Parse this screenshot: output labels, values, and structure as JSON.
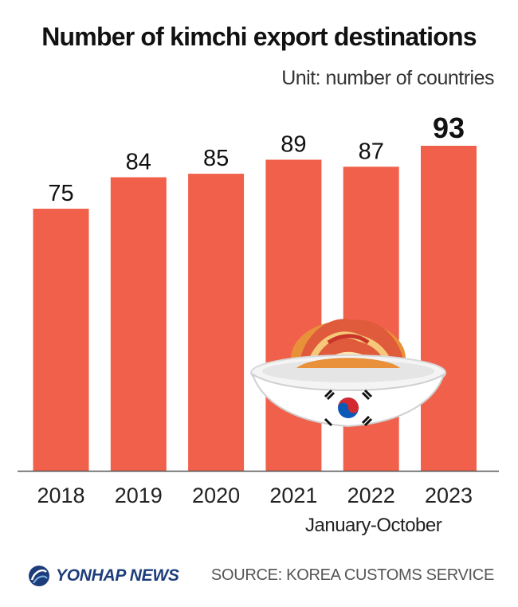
{
  "title": "Number of kimchi export destinations",
  "unit": "Unit: number of countries",
  "note": "January-October",
  "brand": "YONHAP NEWS",
  "source": "SOURCE: KOREA CUSTOMS SERVICE",
  "colors": {
    "bar": "#f0604a",
    "axis": "#555555",
    "brand": "#1d3d7a"
  },
  "icons": {
    "logo": "yonhap-globe-icon",
    "illustration": "kimchi-bowl-illustration",
    "flag": "korean-flag-icon"
  },
  "chart_data": {
    "type": "bar",
    "title": "Number of kimchi export destinations",
    "xlabel": "",
    "ylabel": "",
    "categories": [
      "2018",
      "2019",
      "2020",
      "2021",
      "2022",
      "2023"
    ],
    "values": [
      75,
      84,
      85,
      89,
      87,
      93
    ],
    "highlight_index": 5,
    "ylim": [
      0,
      100
    ],
    "grid": false,
    "legend": "none"
  }
}
